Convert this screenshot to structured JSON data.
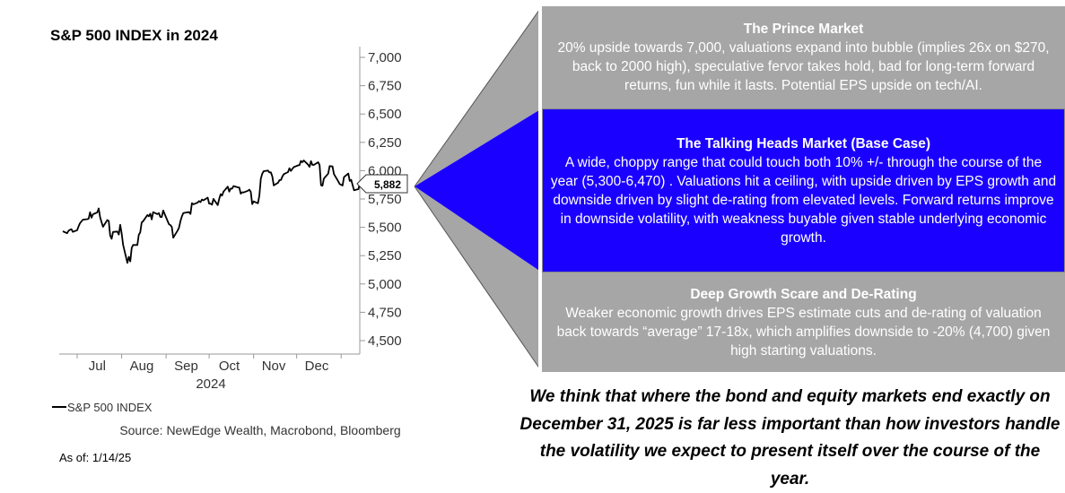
{
  "chart_data": {
    "type": "line",
    "title": "S&P 500 INDEX in 2024",
    "x_ticks": [
      "Jul",
      "Aug",
      "Sep",
      "Oct",
      "Nov",
      "Dec"
    ],
    "x_year_label": "2024",
    "y_ticks": [
      "7,000",
      "6,750",
      "6,500",
      "6,250",
      "6,000",
      "5,750",
      "5,500",
      "5,250",
      "5,000",
      "4,750",
      "4,500"
    ],
    "ylim": [
      4500,
      7000
    ],
    "y_axis_side": "right",
    "grid": false,
    "legend": "bottom-left",
    "series": [
      {
        "name": "S&P 500 INDEX",
        "color": "#000000",
        "x": [
          "2024-06-21",
          "2024-06-24",
          "2024-06-25",
          "2024-06-26",
          "2024-06-27",
          "2024-06-28",
          "2024-07-01",
          "2024-07-02",
          "2024-07-03",
          "2024-07-05",
          "2024-07-08",
          "2024-07-09",
          "2024-07-10",
          "2024-07-11",
          "2024-07-12",
          "2024-07-15",
          "2024-07-16",
          "2024-07-17",
          "2024-07-18",
          "2024-07-19",
          "2024-07-22",
          "2024-07-23",
          "2024-07-24",
          "2024-07-25",
          "2024-07-26",
          "2024-07-29",
          "2024-07-30",
          "2024-07-31",
          "2024-08-01",
          "2024-08-02",
          "2024-08-05",
          "2024-08-06",
          "2024-08-07",
          "2024-08-08",
          "2024-08-09",
          "2024-08-12",
          "2024-08-13",
          "2024-08-14",
          "2024-08-15",
          "2024-08-16",
          "2024-08-19",
          "2024-08-20",
          "2024-08-21",
          "2024-08-22",
          "2024-08-23",
          "2024-08-26",
          "2024-08-27",
          "2024-08-28",
          "2024-08-29",
          "2024-08-30",
          "2024-09-03",
          "2024-09-04",
          "2024-09-05",
          "2024-09-06",
          "2024-09-09",
          "2024-09-10",
          "2024-09-11",
          "2024-09-12",
          "2024-09-13",
          "2024-09-16",
          "2024-09-17",
          "2024-09-18",
          "2024-09-19",
          "2024-09-20",
          "2024-09-23",
          "2024-09-24",
          "2024-09-25",
          "2024-09-26",
          "2024-09-27",
          "2024-09-30",
          "2024-10-01",
          "2024-10-02",
          "2024-10-03",
          "2024-10-04",
          "2024-10-07",
          "2024-10-08",
          "2024-10-09",
          "2024-10-10",
          "2024-10-11",
          "2024-10-14",
          "2024-10-15",
          "2024-10-16",
          "2024-10-17",
          "2024-10-18",
          "2024-10-21",
          "2024-10-22",
          "2024-10-23",
          "2024-10-24",
          "2024-10-25",
          "2024-10-28",
          "2024-10-29",
          "2024-10-30",
          "2024-10-31",
          "2024-11-01",
          "2024-11-04",
          "2024-11-05",
          "2024-11-06",
          "2024-11-07",
          "2024-11-08",
          "2024-11-11",
          "2024-11-12",
          "2024-11-13",
          "2024-11-14",
          "2024-11-15",
          "2024-11-18",
          "2024-11-19",
          "2024-11-20",
          "2024-11-21",
          "2024-11-22",
          "2024-11-25",
          "2024-11-26",
          "2024-11-27",
          "2024-11-29",
          "2024-12-02",
          "2024-12-03",
          "2024-12-04",
          "2024-12-05",
          "2024-12-06",
          "2024-12-09",
          "2024-12-10",
          "2024-12-11",
          "2024-12-12",
          "2024-12-13",
          "2024-12-16",
          "2024-12-17",
          "2024-12-18",
          "2024-12-19",
          "2024-12-20",
          "2024-12-23",
          "2024-12-24",
          "2024-12-26",
          "2024-12-27",
          "2024-12-30",
          "2024-12-31",
          "2025-01-02",
          "2025-01-03",
          "2025-01-06",
          "2025-01-07",
          "2025-01-08",
          "2025-01-10",
          "2025-01-13",
          "2025-01-14"
        ],
        "values": [
          5465,
          5448,
          5470,
          5478,
          5483,
          5460,
          5475,
          5509,
          5537,
          5567,
          5572,
          5576,
          5633,
          5585,
          5615,
          5631,
          5667,
          5589,
          5545,
          5505,
          5564,
          5556,
          5427,
          5399,
          5459,
          5463,
          5436,
          5522,
          5446,
          5346,
          5186,
          5240,
          5199,
          5319,
          5344,
          5344,
          5434,
          5455,
          5543,
          5554,
          5608,
          5597,
          5620,
          5570,
          5634,
          5616,
          5625,
          5592,
          5591,
          5648,
          5528,
          5520,
          5503,
          5408,
          5471,
          5496,
          5554,
          5596,
          5626,
          5633,
          5634,
          5618,
          5714,
          5703,
          5718,
          5732,
          5722,
          5745,
          5738,
          5762,
          5709,
          5709,
          5699,
          5751,
          5696,
          5751,
          5792,
          5780,
          5815,
          5859,
          5815,
          5842,
          5841,
          5864,
          5853,
          5851,
          5797,
          5809,
          5808,
          5823,
          5832,
          5813,
          5705,
          5729,
          5712,
          5782,
          5929,
          5973,
          5995,
          6001,
          5984,
          5985,
          5949,
          5870,
          5893,
          5917,
          5917,
          5948,
          5969,
          5987,
          6021,
          5998,
          6032,
          6047,
          6049,
          6086,
          6075,
          6090,
          6053,
          6034,
          6084,
          6051,
          6051,
          6074,
          6050,
          5872,
          5867,
          5930,
          5974,
          6040,
          6037,
          5970,
          5906,
          5882,
          5869,
          5943,
          5975,
          5909,
          5919,
          5827,
          5837,
          5882
        ]
      }
    ],
    "callout_label": "5,882",
    "legend_label": "S&P 500 INDEX",
    "source": "Source: NewEdge Wealth, Macrobond, Bloomberg"
  },
  "as_of": "As of: 1/14/25",
  "scenarios": [
    {
      "id": "prince",
      "title": "The Prince Market",
      "body": "20% upside towards 7,000, valuations expand into bubble (implies 26x on $270, back to 2000 high), speculative fervor takes hold, bad for long-term forward returns, fun while it lasts. Potential EPS upside on tech/AI.",
      "color": "#a6a6a6"
    },
    {
      "id": "base",
      "title": "The Talking Heads Market (Base Case)",
      "body": "A wide, choppy range that could touch both 10% +/- through the course of the year (5,300-6,470) . Valuations hit a ceiling, with upside driven by EPS growth and downside driven by slight de-rating from elevated levels. Forward returns improve in downside volatility, with weakness buyable given stable underlying economic growth.",
      "color": "#1a00ff"
    },
    {
      "id": "deep",
      "title": "Deep Growth Scare and De-Rating",
      "body": "Weaker economic growth drives EPS estimate cuts and de-rating of valuation back towards “average” 17-18x, which amplifies downside to -20% (4,700) given high starting valuations.",
      "color": "#a6a6a6"
    }
  ],
  "closing_statement": "We think that where the bond and equity markets end exactly on December 31, 2025 is far less important than how investors handle the volatility we expect to present itself over the course of the year."
}
